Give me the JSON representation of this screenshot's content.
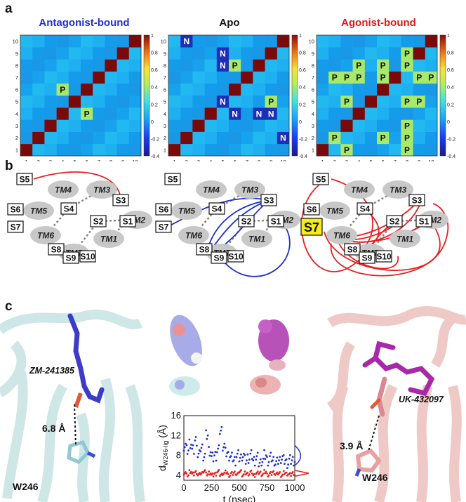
{
  "panel_labels": {
    "a": "a",
    "b": "b",
    "c": "c"
  },
  "heatmaps": [
    {
      "title": "Antagonist-bound",
      "title_color": "#1f2fd6",
      "labels": [
        {
          "text": "P",
          "row": 5,
          "col": 3
        },
        {
          "text": "P",
          "row": 3,
          "col": 5
        }
      ]
    },
    {
      "title": "Apo",
      "title_color": "#111111",
      "labels": [
        {
          "text": "N",
          "row": 9,
          "col": 1
        },
        {
          "text": "N",
          "row": 8,
          "col": 4
        },
        {
          "text": "N",
          "row": 7,
          "col": 4
        },
        {
          "text": "P",
          "row": 7,
          "col": 5
        },
        {
          "text": "N",
          "row": 4,
          "col": 4
        },
        {
          "text": "P",
          "row": 4,
          "col": 8
        },
        {
          "text": "N",
          "row": 3,
          "col": 5
        },
        {
          "text": "N",
          "row": 3,
          "col": 7
        },
        {
          "text": "N",
          "row": 3,
          "col": 8
        },
        {
          "text": "N",
          "row": 1,
          "col": 9
        }
      ]
    },
    {
      "title": "Agonist-bound",
      "title_color": "#e01818",
      "labels": [
        {
          "text": "P",
          "row": 8,
          "col": 7
        },
        {
          "text": "P",
          "row": 7,
          "col": 3
        },
        {
          "text": "P",
          "row": 7,
          "col": 5
        },
        {
          "text": "P",
          "row": 7,
          "col": 7
        },
        {
          "text": "P",
          "row": 6,
          "col": 1
        },
        {
          "text": "P",
          "row": 6,
          "col": 2
        },
        {
          "text": "P",
          "row": 6,
          "col": 3
        },
        {
          "text": "P",
          "row": 6,
          "col": 5
        },
        {
          "text": "P",
          "row": 6,
          "col": 8
        },
        {
          "text": "P",
          "row": 6,
          "col": 9
        },
        {
          "text": "P",
          "row": 4,
          "col": 2
        },
        {
          "text": "P",
          "row": 4,
          "col": 7
        },
        {
          "text": "P",
          "row": 4,
          "col": 8
        },
        {
          "text": "P",
          "row": 2,
          "col": 7
        },
        {
          "text": "P",
          "row": 1,
          "col": 1
        },
        {
          "text": "P",
          "row": 1,
          "col": 5
        },
        {
          "text": "P",
          "row": 1,
          "col": 7
        },
        {
          "text": "P",
          "row": 0,
          "col": 2
        },
        {
          "text": "P",
          "row": 0,
          "col": 7
        }
      ]
    }
  ],
  "heatmap_axis_ticks": [
    "1",
    "2",
    "3",
    "4",
    "5",
    "6",
    "7",
    "8",
    "9",
    "10"
  ],
  "colorbar_ticks": [
    "1",
    "0.8",
    "0.6",
    "0.4",
    "0.2",
    "0",
    "-0.2",
    "-0.4"
  ],
  "colors": {
    "diag": "#7a0a0a",
    "base": "#19a6f0",
    "pos": "#f6c52e",
    "neg": "#1c2fb8",
    "antagonist": "#2030d0",
    "agonist": "#e82020"
  },
  "networks": {
    "tm_labels": [
      "TM1",
      "TM2",
      "TM3",
      "TM4",
      "TM5",
      "TM6",
      "TM7"
    ],
    "site_labels": [
      "S1",
      "S2",
      "S3",
      "S4",
      "S5",
      "S6",
      "S7",
      "S8",
      "S9",
      "S10"
    ],
    "highlight_site": "S7"
  },
  "structure": {
    "left_ligand": "ZM-241385",
    "left_distance": "6.8 Å",
    "left_residue": "W246",
    "right_ligand": "UK-432097",
    "right_distance": "3.9 Å",
    "right_residue": "W246"
  },
  "chart_data": {
    "type": "scatter",
    "title": "",
    "xlabel": "t (nsec)",
    "ylabel": "d W246-lig (Å)",
    "ylabel_main": "d",
    "ylabel_sub": "W246-lig",
    "ylabel_unit": "(Å)",
    "xlim": [
      0,
      1000
    ],
    "ylim": [
      3,
      16
    ],
    "x_ticks": [
      "0",
      "250",
      "500",
      "750",
      "1000"
    ],
    "y_ticks": [
      "4",
      "8",
      "12",
      "16"
    ],
    "series": [
      {
        "color": "#2030d0",
        "x": [
          0,
          25,
          50,
          75,
          100,
          125,
          150,
          175,
          200,
          225,
          250,
          275,
          300,
          325,
          350,
          375,
          400,
          425,
          450,
          475,
          500,
          525,
          550,
          575,
          600,
          625,
          650,
          675,
          700,
          725,
          750,
          775,
          800,
          825,
          850,
          875,
          900,
          925,
          950,
          975,
          1000
        ],
        "y": [
          10,
          9,
          10.5,
          9,
          11,
          8,
          9.5,
          8,
          12,
          9,
          7.5,
          8,
          9,
          13,
          10,
          8.5,
          8,
          7.5,
          7,
          8,
          7.5,
          8,
          7,
          7.5,
          8,
          7,
          7.5,
          6.5,
          7,
          8,
          7,
          7.5,
          7,
          6.5,
          7,
          7.5,
          7,
          6.5,
          7,
          7,
          7
        ]
      },
      {
        "color": "#e82020",
        "x": [
          0,
          25,
          50,
          75,
          100,
          125,
          150,
          175,
          200,
          225,
          250,
          275,
          300,
          325,
          350,
          375,
          400,
          425,
          450,
          475,
          500,
          525,
          550,
          575,
          600,
          625,
          650,
          675,
          700,
          725,
          750,
          775,
          800,
          825,
          850,
          875,
          900,
          925,
          950,
          975,
          1000
        ],
        "y": [
          4.5,
          4,
          4.8,
          4.2,
          4.6,
          4.1,
          4.4,
          4.9,
          4.2,
          4.5,
          4,
          4.3,
          4.7,
          4.1,
          4.4,
          4.6,
          4,
          4.3,
          4.5,
          4.2,
          4.8,
          4.1,
          4.4,
          4.3,
          4.6,
          4,
          4.4,
          4.5,
          4.2,
          4.7,
          4.1,
          4.3,
          4.6,
          4.2,
          4.4,
          4,
          4.5,
          4.3,
          4.1,
          4.4,
          4.2
        ]
      }
    ]
  }
}
